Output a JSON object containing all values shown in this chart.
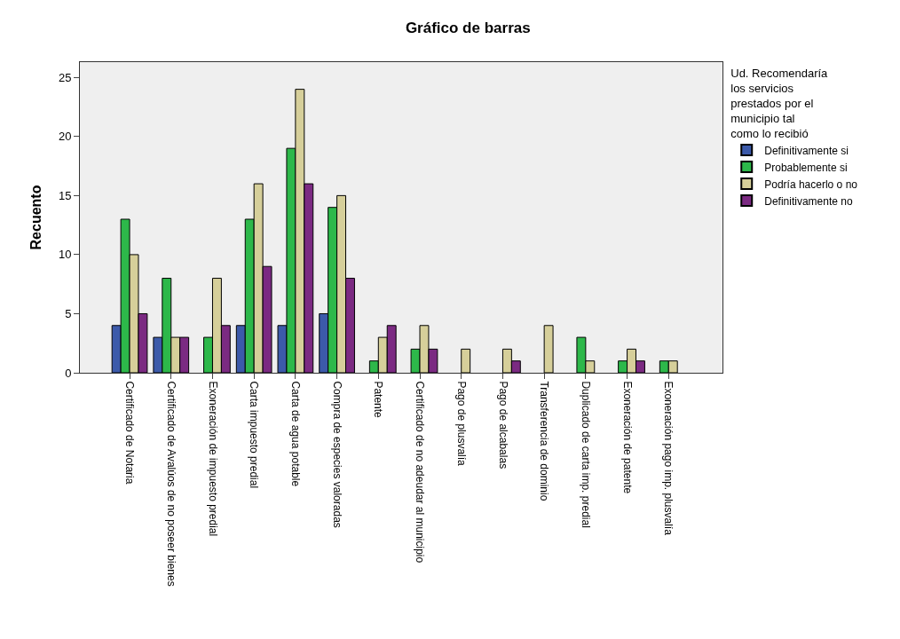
{
  "chart_data": {
    "type": "bar",
    "title": "Gráfico de barras",
    "ylabel": "Recuento",
    "legend_title": "Ud. Recomendaría los servicios prestados por el municipio tal como lo recibió",
    "categories": [
      "Certificado de Notaria",
      "Certificado de Avalúos de no poseer bienes",
      "Exoneración de impuesto predial",
      "Carta impuesto predial",
      "Carta de agua potable",
      "Compra de especies valoradas",
      "Patente",
      "Certificado de no adeudar al municipio",
      "Pago de plusvalía",
      "Pago de alcabalas",
      "Transferencia de dominio",
      "Duplicado de carta imp. predial",
      "Exoneración de patente",
      "Exoneración pago imp. plusvalía"
    ],
    "series": [
      {
        "name": "Definitivamente si",
        "color": "#3c5aaa",
        "values": [
          4,
          3,
          null,
          4,
          4,
          5,
          null,
          null,
          null,
          null,
          null,
          null,
          null,
          null
        ]
      },
      {
        "name": "Probablemente si",
        "color": "#2db84a",
        "values": [
          13,
          8,
          3,
          13,
          19,
          14,
          1,
          2,
          null,
          null,
          null,
          3,
          1,
          1
        ]
      },
      {
        "name": "Podría hacerlo o no",
        "color": "#d6cf9a",
        "values": [
          10,
          3,
          8,
          16,
          24,
          15,
          3,
          4,
          2,
          2,
          4,
          1,
          2,
          1
        ]
      },
      {
        "name": "Definitivamente no",
        "color": "#7b2a82",
        "values": [
          5,
          3,
          4,
          9,
          16,
          8,
          4,
          2,
          null,
          1,
          null,
          null,
          1,
          null
        ]
      }
    ],
    "ylim": [
      0,
      26.3
    ],
    "yticks": [
      0,
      5,
      10,
      15,
      20,
      25
    ],
    "grid": false,
    "legend": "right"
  }
}
